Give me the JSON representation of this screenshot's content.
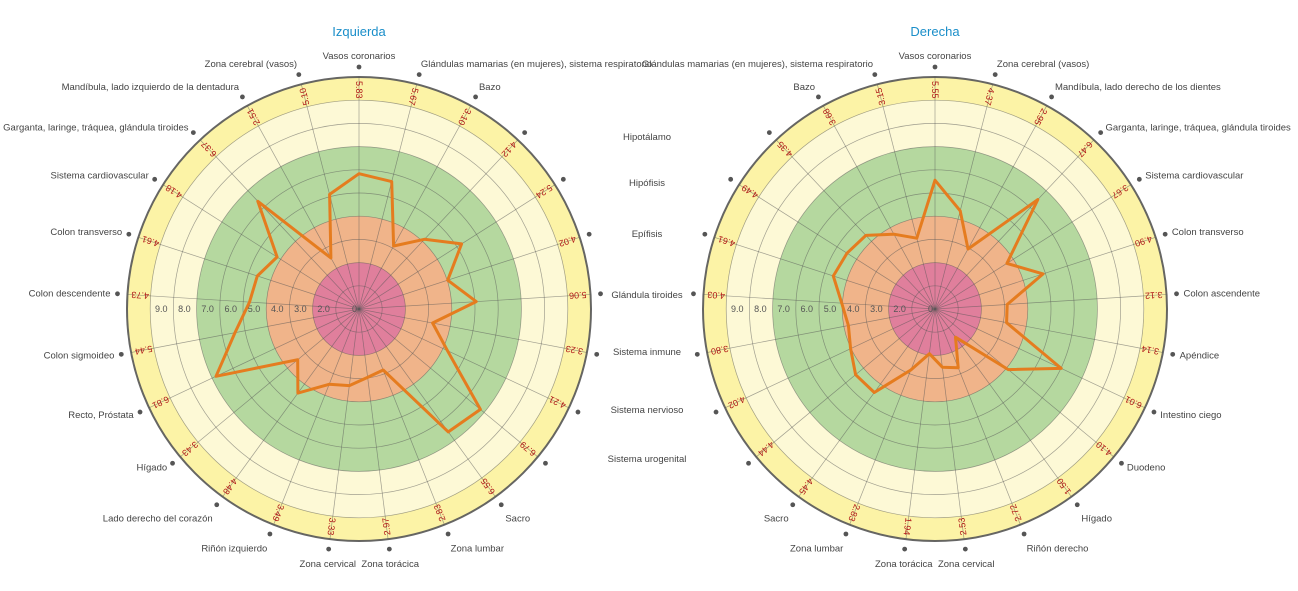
{
  "colors": {
    "zone_outer": "#fcf3a6",
    "zone_pale": "#fdf9d6",
    "zone_green": "#b5d89f",
    "zone_orange": "#f0b48a",
    "zone_pink": "#e07f9c",
    "series_line": "#e57c1f",
    "grid_line": "#555555",
    "value_text": "#b01818",
    "title_text": "#1a8ec9"
  },
  "middle_labels": [
    "Hipotálamo",
    "Hipófisis",
    "Epífisis",
    "Glándula tiroides",
    "Sistema inmune",
    "Sistema nervioso",
    "Sistema urogenital"
  ],
  "chart_data": [
    {
      "type": "radar",
      "title": "Izquierda",
      "radial_range": [
        0,
        10
      ],
      "radial_ticks": [
        "2.0",
        "3.0",
        "4.0",
        "5.0",
        "6.0",
        "7.0",
        "8.0",
        "9.0"
      ],
      "radial_tick_zero": "0",
      "zones": [
        [
          0,
          2
        ],
        [
          2,
          4
        ],
        [
          4,
          7
        ],
        [
          7,
          9
        ],
        [
          9,
          10
        ]
      ],
      "grid": true,
      "categories": [
        "Vasos coronarios",
        "Glándulas mamarias (en mujeres), sistema respiratorio",
        "Bazo",
        "",
        "",
        "",
        "",
        "",
        "",
        "",
        "Sacro",
        "Zona lumbar",
        "Zona torácica",
        "Zona cervical",
        "Riñón izquierdo",
        "Lado derecho del corazón",
        "Hígado",
        "Recto, Próstata",
        "Colon sigmoideo",
        "Colon descendente",
        "Colon transverso",
        "Sistema cardiovascular",
        "Garganta, laringe, tráquea, glándula tiroides",
        "Mandíbula, lado izquierdo de la dentadura",
        "Zona cerebral (vasos)"
      ],
      "value_labels": [
        "5.83",
        "5.67",
        "3.10",
        "4.12",
        "5.24",
        "4.02",
        "5.06",
        "3.23",
        "4.21",
        "6.79",
        "6.55",
        "2.83",
        "2.97",
        "3.33",
        "3.49",
        "4.48",
        "3.43",
        "6.81",
        "5.44",
        "4.73",
        "4.61",
        "4.18",
        "6.37",
        "2.51",
        "5.10"
      ],
      "values": [
        5.83,
        5.67,
        3.1,
        4.12,
        5.24,
        4.02,
        5.06,
        3.23,
        4.21,
        6.79,
        6.55,
        2.83,
        2.97,
        3.33,
        3.49,
        4.48,
        3.43,
        6.81,
        5.44,
        4.73,
        4.61,
        4.18,
        6.37,
        2.51,
        5.1
      ]
    },
    {
      "type": "radar",
      "title": "Derecha",
      "radial_range": [
        0,
        10
      ],
      "radial_ticks": [
        "2.0",
        "3.0",
        "4.0",
        "5.0",
        "6.0",
        "7.0",
        "8.0",
        "9.0"
      ],
      "radial_tick_zero": "0",
      "zones": [
        [
          0,
          2
        ],
        [
          2,
          4
        ],
        [
          4,
          7
        ],
        [
          7,
          9
        ],
        [
          9,
          10
        ]
      ],
      "grid": true,
      "categories": [
        "Vasos coronarios",
        "Zona cerebral (vasos)",
        "Mandíbula, lado derecho de los dientes",
        "Garganta, laringe, tráquea, glándula tiroides",
        "Sistema cardiovascular",
        "Colon transverso",
        "Colon ascendente",
        "Apéndice",
        "Intestino ciego",
        "Duodeno",
        "Hígado",
        "Riñón derecho",
        "Zona cervical",
        "Zona torácica",
        "Zona lumbar",
        "Sacro",
        "",
        "",
        "",
        "",
        "",
        "",
        "",
        "Bazo",
        "Glándulas mamarias (en mujeres), sistema respiratorio"
      ],
      "value_labels": [
        "5.55",
        "4.37",
        "2.95",
        "6.47",
        "3.67",
        "4.90",
        "3.12",
        "3.14",
        "6.01",
        "4.10",
        "1.50",
        "2.72",
        "2.53",
        "1.94",
        "2.83",
        "4.45",
        "4.44",
        "4.02",
        "3.80",
        "4.03",
        "4.61",
        "4.49",
        "4.35",
        "3.68",
        "3.15"
      ],
      "values": [
        5.55,
        4.37,
        2.95,
        6.47,
        3.67,
        4.9,
        3.12,
        3.14,
        6.01,
        4.1,
        1.5,
        2.72,
        2.53,
        1.94,
        2.83,
        4.45,
        4.44,
        4.02,
        3.8,
        4.03,
        4.61,
        4.49,
        4.35,
        3.68,
        3.15
      ]
    }
  ]
}
